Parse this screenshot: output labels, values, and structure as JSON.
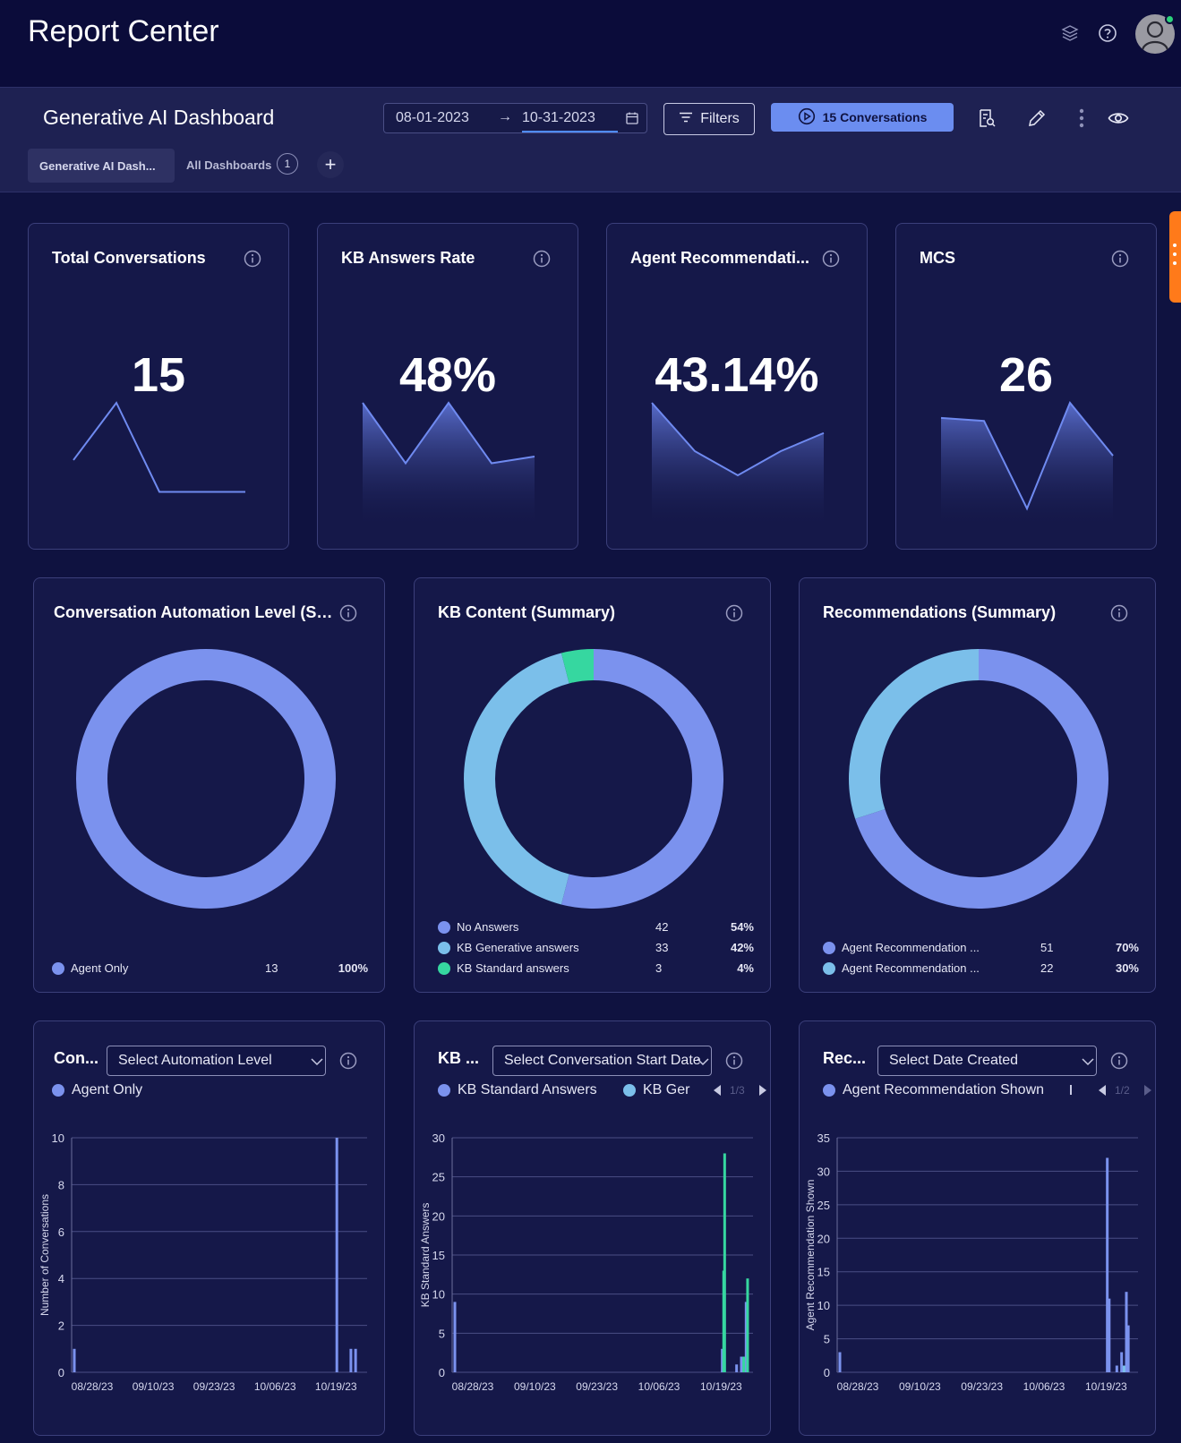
{
  "app": {
    "title": "Report Center"
  },
  "dashboard": {
    "title": "Generative AI Dashboard",
    "date_start": "08-01-2023",
    "date_end": "10-31-2023",
    "date_arrow": "→",
    "filters_label": "Filters",
    "conversations_button": "15 Conversations",
    "tabs": [
      {
        "label": "Generative AI Dash..."
      },
      {
        "label": "All Dashboards",
        "count": "1"
      }
    ],
    "add_label": "+"
  },
  "kpis": [
    {
      "title": "Total Conversations",
      "value": "15",
      "trend": [
        10,
        19,
        5,
        5,
        5
      ]
    },
    {
      "title": "KB Answers Rate",
      "value": "48%",
      "trend": [
        90,
        45,
        90,
        45,
        50
      ]
    },
    {
      "title": "Agent Recommendati...",
      "value": "43.14%",
      "trend": [
        100,
        60,
        40,
        60,
        75
      ]
    },
    {
      "title": "MCS",
      "value": "26",
      "trend": [
        70,
        68,
        10,
        80,
        45
      ]
    }
  ],
  "donuts": [
    {
      "title": "Conversation Automation Level (Su...",
      "segments": [
        {
          "label": "Agent Only",
          "count": "13",
          "pct": "100%",
          "value": 100,
          "color": "#7b92ee"
        }
      ]
    },
    {
      "title": "KB Content (Summary)",
      "segments": [
        {
          "label": "No Answers",
          "count": "42",
          "pct": "54%",
          "value": 54,
          "color": "#7b92ee"
        },
        {
          "label": "KB Generative answers",
          "count": "33",
          "pct": "42%",
          "value": 42,
          "color": "#7bbfea"
        },
        {
          "label": "KB Standard answers",
          "count": "3",
          "pct": "4%",
          "value": 4,
          "color": "#36d7a0"
        }
      ]
    },
    {
      "title": "Recommendations (Summary)",
      "segments": [
        {
          "label": "Agent Recommendation ...",
          "count": "51",
          "pct": "70%",
          "value": 70,
          "color": "#7b92ee"
        },
        {
          "label": "Agent Recommendation ...",
          "count": "22",
          "pct": "30%",
          "value": 30,
          "color": "#7bbfea"
        }
      ]
    }
  ],
  "timeseries": [
    {
      "title": "Con...",
      "select": "Select Automation Level",
      "legend": [
        {
          "label": "Agent Only",
          "color": "#7b92ee"
        }
      ],
      "pager": ""
    },
    {
      "title": "KB ...",
      "select": "Select Conversation Start Date",
      "legend": [
        {
          "label": "KB Standard Answers",
          "color": "#7b92ee"
        },
        {
          "label": "KB Ger",
          "color": "#7bbfea"
        }
      ],
      "pager": "1/3"
    },
    {
      "title": "Rec...",
      "select": "Select Date Created",
      "legend": [
        {
          "label": "Agent Recommendation Shown",
          "color": "#7b92ee"
        },
        {
          "label": "",
          "color": "#7bbfea"
        }
      ],
      "pager": "1/2"
    }
  ],
  "chart_data": [
    {
      "type": "bar",
      "ylabel": "Number of Conversations",
      "ylim": [
        0,
        10
      ],
      "yticks": [
        0,
        2,
        4,
        6,
        8,
        10
      ],
      "x_tick_labels": [
        "08/28/23",
        "09/10/23",
        "09/23/23",
        "10/06/23",
        "10/19/23"
      ],
      "x_tick_days": [
        0,
        13,
        26,
        39,
        52
      ],
      "series": [
        {
          "name": "Agent Only",
          "color": "#7b92ee",
          "points": [
            {
              "day": 0,
              "y": 1
            },
            {
              "day": 56,
              "y": 10
            },
            {
              "day": 59,
              "y": 1
            },
            {
              "day": 60,
              "y": 1
            }
          ]
        }
      ]
    },
    {
      "type": "bar",
      "ylabel": "KB Standard Answers",
      "ylim": [
        0,
        30
      ],
      "yticks": [
        0,
        5,
        10,
        15,
        20,
        25,
        30
      ],
      "x_tick_labels": [
        "08/28/23",
        "09/10/23",
        "09/23/23",
        "10/06/23",
        "10/19/23"
      ],
      "x_tick_days": [
        0,
        13,
        26,
        39,
        52
      ],
      "series": [
        {
          "name": "KB Standard Answers",
          "color": "#7b92ee",
          "points": [
            {
              "day": 0,
              "y": 9
            },
            {
              "day": 56,
              "y": 3
            },
            {
              "day": 59,
              "y": 1
            },
            {
              "day": 60,
              "y": 2
            },
            {
              "day": 61,
              "y": 9
            }
          ]
        },
        {
          "name": "KB Ger",
          "color": "#36d7a0",
          "points": [
            {
              "day": 56.5,
              "y": 28
            },
            {
              "day": 56.3,
              "y": 13
            },
            {
              "day": 60.5,
              "y": 2
            },
            {
              "day": 61.3,
              "y": 12
            }
          ]
        }
      ]
    },
    {
      "type": "bar",
      "ylabel": "Agent Recommendation Shown",
      "ylim": [
        0,
        35
      ],
      "yticks": [
        0,
        5,
        10,
        15,
        20,
        25,
        30,
        35
      ],
      "x_tick_labels": [
        "08/28/23",
        "09/10/23",
        "09/23/23",
        "10/06/23",
        "10/19/23"
      ],
      "x_tick_days": [
        0,
        13,
        26,
        39,
        52
      ],
      "series": [
        {
          "name": "Agent Recommendation Shown",
          "color": "#7b92ee",
          "points": [
            {
              "day": 0,
              "y": 3
            },
            {
              "day": 56,
              "y": 32
            },
            {
              "day": 56.4,
              "y": 11
            },
            {
              "day": 58,
              "y": 1
            },
            {
              "day": 59,
              "y": 3
            },
            {
              "day": 60,
              "y": 12
            },
            {
              "day": 60.4,
              "y": 7
            }
          ]
        },
        {
          "name": "",
          "color": "#7bbfea",
          "points": [
            {
              "day": 59.5,
              "y": 1
            }
          ]
        }
      ]
    }
  ]
}
